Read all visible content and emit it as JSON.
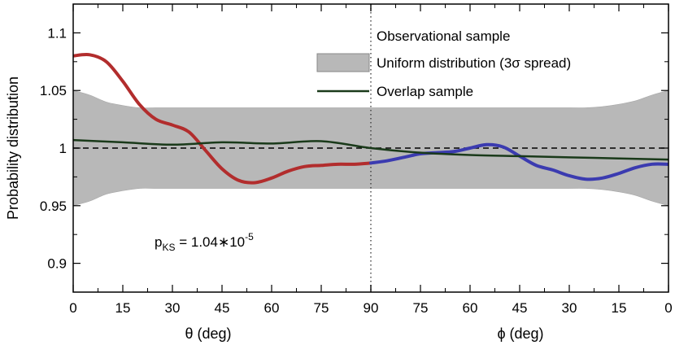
{
  "chart_data": {
    "type": "line",
    "ylabel": "Probability distribution",
    "ylim": [
      0.875,
      1.125
    ],
    "yticks": [
      0.9,
      0.95,
      1,
      1.05,
      1.1
    ],
    "ytick_labels": [
      "0.9",
      "0.95",
      "1",
      "1.05",
      "1.1"
    ],
    "panels": [
      {
        "xlabel": "θ (deg)",
        "xlim": [
          0,
          90
        ],
        "xticks": [
          0,
          15,
          30,
          45,
          60,
          75,
          90
        ],
        "xtick_labels": [
          "0",
          "15",
          "30",
          "45",
          "60",
          "75",
          "90"
        ]
      },
      {
        "xlabel": "ϕ (deg)",
        "xlim": [
          90,
          0
        ],
        "xticks": [
          90,
          75,
          60,
          45,
          30,
          15,
          0
        ],
        "xtick_labels": [
          "90",
          "75",
          "60",
          "45",
          "30",
          "15",
          "0"
        ]
      }
    ],
    "reference_line": {
      "y": 1.0,
      "style": "dashed"
    },
    "divider": {
      "panel_position": 90,
      "style": "dotted"
    },
    "band": {
      "name": "Uniform distribution (3σ spread)",
      "color": "#b8b8b8",
      "x": [
        0,
        5,
        10,
        15,
        20,
        25,
        30,
        45,
        60,
        75,
        90,
        105,
        120,
        135,
        150,
        155,
        160,
        165,
        170,
        175,
        180
      ],
      "upper": [
        1.05,
        1.046,
        1.04,
        1.037,
        1.035,
        1.035,
        1.035,
        1.035,
        1.035,
        1.035,
        1.035,
        1.035,
        1.035,
        1.035,
        1.035,
        1.035,
        1.036,
        1.038,
        1.041,
        1.046,
        1.05
      ],
      "lower": [
        0.95,
        0.954,
        0.96,
        0.963,
        0.965,
        0.965,
        0.965,
        0.965,
        0.965,
        0.965,
        0.965,
        0.965,
        0.965,
        0.965,
        0.965,
        0.965,
        0.964,
        0.962,
        0.959,
        0.954,
        0.95
      ]
    },
    "series": [
      {
        "name": "Observational sample (θ)",
        "color": "#b22d2d",
        "x": [
          0,
          5,
          10,
          15,
          20,
          25,
          30,
          35,
          40,
          45,
          50,
          55,
          60,
          65,
          70,
          75,
          80,
          85,
          90
        ],
        "y": [
          1.08,
          1.081,
          1.075,
          1.058,
          1.038,
          1.025,
          1.02,
          1.014,
          0.998,
          0.982,
          0.972,
          0.97,
          0.974,
          0.98,
          0.984,
          0.985,
          0.986,
          0.986,
          0.987
        ]
      },
      {
        "name": "Observational sample (ϕ)",
        "color": "#3b3bb0",
        "x": [
          90,
          95,
          100,
          105,
          110,
          115,
          120,
          125,
          130,
          135,
          140,
          145,
          150,
          155,
          160,
          165,
          170,
          175,
          180
        ],
        "y": [
          0.987,
          0.989,
          0.992,
          0.995,
          0.996,
          0.997,
          1.0,
          1.003,
          1.001,
          0.993,
          0.985,
          0.981,
          0.976,
          0.973,
          0.974,
          0.978,
          0.983,
          0.986,
          0.986
        ]
      },
      {
        "name": "Overlap sample",
        "color": "#1a3a1a",
        "x": [
          0,
          15,
          30,
          45,
          60,
          75,
          90,
          105,
          120,
          135,
          150,
          165,
          180
        ],
        "y": [
          1.007,
          1.005,
          1.003,
          1.005,
          1.004,
          1.006,
          1.0,
          0.996,
          0.994,
          0.993,
          0.992,
          0.991,
          0.99
        ]
      }
    ],
    "legend": {
      "position": "top-right",
      "entries": [
        "Observational sample",
        "Uniform distribution (3σ spread)",
        "Overlap sample"
      ]
    },
    "annotation": {
      "p_main": "p",
      "p_sub": "KS",
      "equals": " = ",
      "mantissa": "1.04",
      "times": "∗",
      "base": "10",
      "exponent": "-5"
    }
  }
}
